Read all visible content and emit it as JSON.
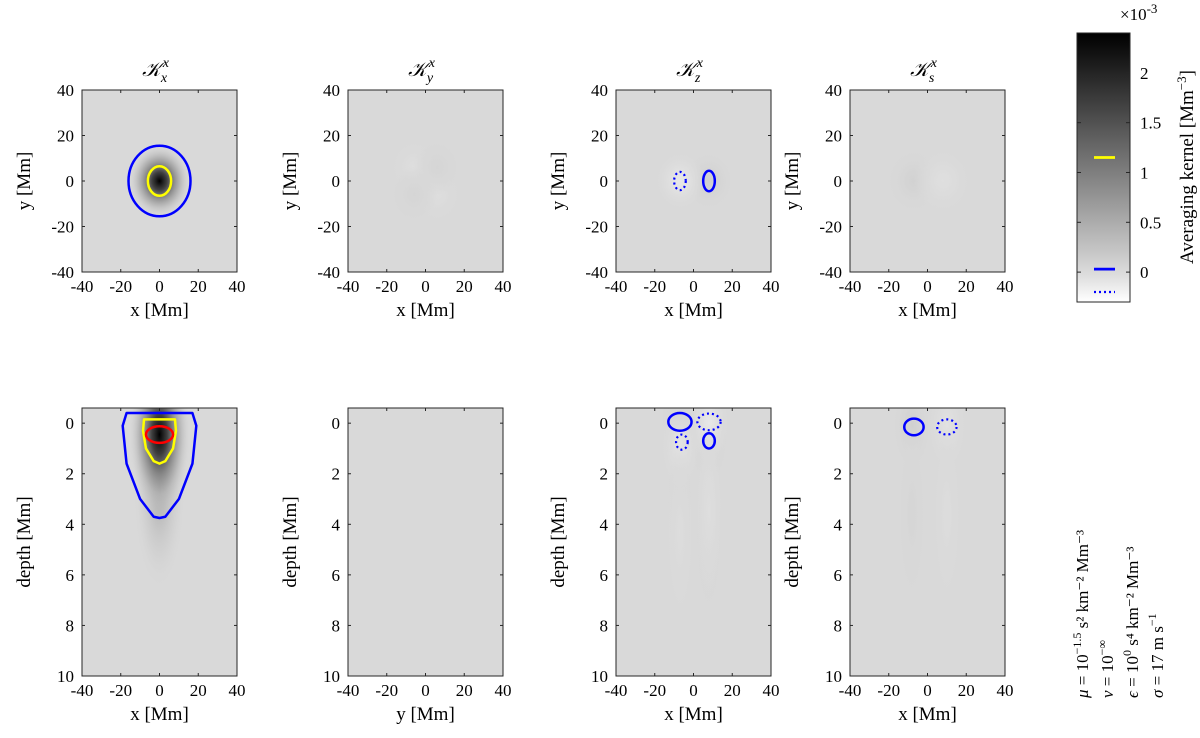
{
  "chart_data": [
    {
      "type": "heatmap",
      "title_base": "𝒦",
      "title_sub": "x",
      "title_sup": "x",
      "xlabel": "x [Mm]",
      "ylabel": "y [Mm]",
      "xlim": [
        -40,
        40
      ],
      "ylim": [
        -40,
        40
      ],
      "y_reversed": false,
      "xticks": [
        -40,
        -20,
        0,
        20,
        40
      ],
      "yticks": [
        -40,
        -20,
        0,
        20,
        40
      ],
      "kernel_type": "gaussian",
      "peak": 2.4,
      "center": [
        0,
        0
      ],
      "spread": [
        6,
        6
      ],
      "contours": [
        {
          "color": "#0000ff",
          "style": "solid",
          "shape": "ellipse",
          "center": [
            0,
            0
          ],
          "radii": [
            16,
            15.5
          ]
        },
        {
          "color": "#ffff00",
          "style": "solid",
          "shape": "ellipse",
          "center": [
            0,
            0
          ],
          "radii": [
            6,
            6.5
          ]
        }
      ]
    },
    {
      "type": "heatmap",
      "title_base": "𝒦",
      "title_sub": "y",
      "title_sup": "x",
      "xlabel": "x [Mm]",
      "ylabel": "y [Mm]",
      "xlim": [
        -40,
        40
      ],
      "ylim": [
        -40,
        40
      ],
      "y_reversed": false,
      "xticks": [
        -40,
        -20,
        0,
        20,
        40
      ],
      "yticks": [
        -40,
        -20,
        0,
        20,
        40
      ],
      "kernel_type": "quadrupole",
      "lobes": [
        {
          "center": [
            -6,
            6
          ],
          "amp": -0.04,
          "spread": 5
        },
        {
          "center": [
            6,
            -6
          ],
          "amp": -0.04,
          "spread": 5
        },
        {
          "center": [
            6,
            6
          ],
          "amp": 0.04,
          "spread": 5
        },
        {
          "center": [
            -6,
            -6
          ],
          "amp": 0.04,
          "spread": 5
        }
      ],
      "contours": []
    },
    {
      "type": "heatmap",
      "title_base": "𝒦",
      "title_sub": "z",
      "title_sup": "x",
      "xlabel": "x [Mm]",
      "ylabel": "y [Mm]",
      "xlim": [
        -40,
        40
      ],
      "ylim": [
        -40,
        40
      ],
      "y_reversed": false,
      "xticks": [
        -40,
        -20,
        0,
        20,
        40
      ],
      "yticks": [
        -40,
        -20,
        0,
        20,
        40
      ],
      "kernel_type": "dipole",
      "lobes": [
        {
          "center": [
            8,
            0
          ],
          "amp": 0.12,
          "spread": 5
        },
        {
          "center": [
            -7,
            0
          ],
          "amp": -0.12,
          "spread": 5
        }
      ],
      "contours": [
        {
          "color": "#0000ff",
          "style": "solid",
          "shape": "ellipse",
          "center": [
            8,
            0
          ],
          "radii": [
            3,
            4.5
          ]
        },
        {
          "color": "#0000ff",
          "style": "dotted",
          "shape": "ellipse",
          "center": [
            -7,
            0
          ],
          "radii": [
            3,
            4
          ]
        }
      ]
    },
    {
      "type": "heatmap",
      "title_base": "𝒦",
      "title_sub": "s",
      "title_sup": "x",
      "xlabel": "x [Mm]",
      "ylabel": "y [Mm]",
      "xlim": [
        -40,
        40
      ],
      "ylim": [
        -40,
        40
      ],
      "y_reversed": false,
      "xticks": [
        -40,
        -20,
        0,
        20,
        40
      ],
      "yticks": [
        -40,
        -20,
        0,
        20,
        40
      ],
      "kernel_type": "dipole",
      "lobes": [
        {
          "center": [
            -7,
            0
          ],
          "amp": 0.08,
          "spread": 6
        },
        {
          "center": [
            8,
            0
          ],
          "amp": -0.05,
          "spread": 6
        }
      ],
      "contours": []
    },
    {
      "type": "heatmap",
      "xlabel": "x [Mm]",
      "ylabel": "depth [Mm]",
      "xlim": [
        -40,
        40
      ],
      "ylim": [
        -0.6,
        10
      ],
      "y_reversed": true,
      "xticks": [
        -40,
        -20,
        0,
        20,
        40
      ],
      "yticks": [
        0,
        2,
        4,
        6,
        8,
        10
      ],
      "kernel_type": "gaussian",
      "peak": 2.4,
      "center": [
        0,
        0.45
      ],
      "spread": [
        6,
        1.2
      ],
      "tail": true,
      "contours": [
        {
          "color": "#0000ff",
          "style": "solid",
          "shape": "path",
          "points": [
            [
              -17,
              -0.4
            ],
            [
              17,
              -0.4
            ],
            [
              19,
              0.1
            ],
            [
              17,
              1.6
            ],
            [
              10,
              3.0
            ],
            [
              3,
              3.7
            ],
            [
              0,
              3.75
            ],
            [
              -3,
              3.7
            ],
            [
              -10,
              3.0
            ],
            [
              -17,
              1.6
            ],
            [
              -19,
              0.1
            ]
          ]
        },
        {
          "color": "#ffff00",
          "style": "solid",
          "shape": "path",
          "points": [
            [
              -8,
              -0.15
            ],
            [
              8,
              -0.15
            ],
            [
              8.5,
              0.3
            ],
            [
              7,
              1.0
            ],
            [
              3,
              1.5
            ],
            [
              0,
              1.6
            ],
            [
              -3,
              1.5
            ],
            [
              -7,
              1.0
            ],
            [
              -8.5,
              0.3
            ]
          ]
        },
        {
          "color": "#ff0000",
          "style": "solid",
          "shape": "ellipse",
          "center": [
            0,
            0.45
          ],
          "radii": [
            7,
            0.33
          ]
        }
      ]
    },
    {
      "type": "heatmap",
      "xlabel": "y [Mm]",
      "ylabel": "depth [Mm]",
      "xlim": [
        -40,
        40
      ],
      "ylim": [
        -0.6,
        10
      ],
      "y_reversed": true,
      "xticks": [
        -40,
        -20,
        0,
        20,
        40
      ],
      "yticks": [
        0,
        2,
        4,
        6,
        8,
        10
      ],
      "kernel_type": "flat",
      "contours": []
    },
    {
      "type": "heatmap",
      "xlabel": "x [Mm]",
      "ylabel": "depth [Mm]",
      "xlim": [
        -40,
        40
      ],
      "ylim": [
        -0.6,
        10
      ],
      "y_reversed": true,
      "xticks": [
        -40,
        -20,
        0,
        20,
        40
      ],
      "yticks": [
        0,
        2,
        4,
        6,
        8,
        10
      ],
      "kernel_type": "dipole",
      "lobes": [
        {
          "center": [
            -7,
            0.0
          ],
          "amp": 0.14,
          "spread": 4
        },
        {
          "center": [
            8,
            0.7
          ],
          "amp": 0.1,
          "spread": 4
        },
        {
          "center": [
            8,
            0.0
          ],
          "amp": -0.12,
          "spread": 4
        },
        {
          "center": [
            -7,
            0.8
          ],
          "amp": -0.08,
          "spread": 4
        }
      ],
      "contours": [
        {
          "color": "#0000ff",
          "style": "solid",
          "shape": "ellipse",
          "center": [
            -7,
            -0.05
          ],
          "radii": [
            6,
            0.35
          ]
        },
        {
          "color": "#0000ff",
          "style": "dotted",
          "shape": "ellipse",
          "center": [
            8,
            -0.05
          ],
          "radii": [
            6,
            0.33
          ]
        },
        {
          "color": "#0000ff",
          "style": "dotted",
          "shape": "ellipse",
          "center": [
            -6,
            0.75
          ],
          "radii": [
            3,
            0.3
          ]
        },
        {
          "color": "#0000ff",
          "style": "solid",
          "shape": "ellipse",
          "center": [
            8,
            0.7
          ],
          "radii": [
            3,
            0.3
          ]
        }
      ]
    },
    {
      "type": "heatmap",
      "xlabel": "x [Mm]",
      "ylabel": "depth [Mm]",
      "xlim": [
        -40,
        40
      ],
      "ylim": [
        -0.6,
        10
      ],
      "y_reversed": true,
      "xticks": [
        -40,
        -20,
        0,
        20,
        40
      ],
      "yticks": [
        0,
        2,
        4,
        6,
        8,
        10
      ],
      "kernel_type": "dipole",
      "lobes": [
        {
          "center": [
            -8,
            0.1
          ],
          "amp": 0.1,
          "spread": 4
        },
        {
          "center": [
            10,
            0.1
          ],
          "amp": -0.07,
          "spread": 4
        }
      ],
      "contours": [
        {
          "color": "#0000ff",
          "style": "solid",
          "shape": "ellipse",
          "center": [
            -7,
            0.15
          ],
          "radii": [
            5,
            0.33
          ]
        },
        {
          "color": "#0000ff",
          "style": "dotted",
          "shape": "ellipse",
          "center": [
            10,
            0.15
          ],
          "radii": [
            5,
            0.3
          ]
        }
      ]
    }
  ],
  "colorbar": {
    "label": "Averaging kernel [Mm",
    "label_sup": "−3",
    "label_close": "]",
    "range": [
      -0.3,
      2.4
    ],
    "ticks": [
      0,
      0.5,
      1,
      1.5,
      2
    ],
    "tick_labels": [
      "0",
      "0.5",
      "1",
      "1.5",
      "2"
    ],
    "multiplier_base": "×10",
    "multiplier_exp": "-3",
    "legend_marks": [
      {
        "color": "#ffff00",
        "style": "solid",
        "value": 1.15
      },
      {
        "color": "#0000ff",
        "style": "solid",
        "value": 0.03
      },
      {
        "color": "#0000ff",
        "style": "dotted",
        "value": -0.2
      }
    ]
  },
  "params": [
    {
      "sym": "μ",
      "text": " = 10",
      "sup": "−1.5",
      "rest": " s² km⁻² Mm⁻³"
    },
    {
      "sym": "ν",
      "text": " = 10",
      "sup": "−∞",
      "rest": ""
    },
    {
      "sym": "ϵ",
      "text": " = 10",
      "sup": "0",
      "rest": " s⁴ km⁻² Mm⁻³"
    },
    {
      "sym": "σ",
      "text": " = 17 m s",
      "sup": "−1",
      "rest": ""
    }
  ],
  "colors": {
    "ink": "#000000",
    "background_gray": "#d9d9d9"
  }
}
